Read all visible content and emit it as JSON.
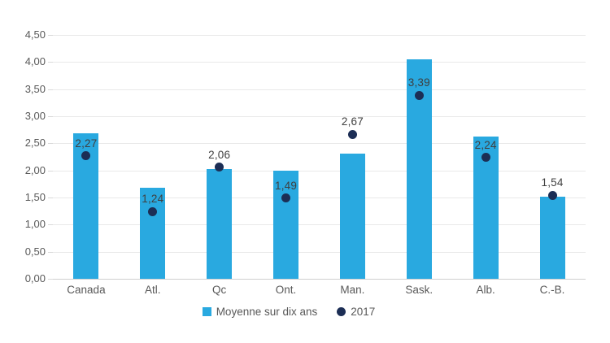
{
  "chart_data": {
    "type": "bar",
    "title": "",
    "categories": [
      "Canada",
      "Atl.",
      "Qc",
      "Ont.",
      "Man.",
      "Sask.",
      "Alb.",
      "C.-B."
    ],
    "series": [
      {
        "name": "Moyenne sur dix ans",
        "type": "bar",
        "values": [
          2.68,
          1.68,
          2.03,
          2.0,
          2.31,
          4.05,
          2.63,
          1.52
        ]
      },
      {
        "name": "2017",
        "type": "scatter",
        "values": [
          2.27,
          1.24,
          2.06,
          1.49,
          2.67,
          3.39,
          2.24,
          1.54
        ],
        "labels": [
          "2,27",
          "1,24",
          "2,06",
          "1,49",
          "2,67",
          "3,39",
          "2,24",
          "1,54"
        ]
      }
    ],
    "ylim": [
      0,
      4.5
    ],
    "ytick_step": 0.5,
    "ytick_labels": [
      "0,00",
      "0,50",
      "1,00",
      "1,50",
      "2,00",
      "2,50",
      "3,00",
      "3,50",
      "4,00",
      "4,50"
    ],
    "grid": true,
    "legend_position": "bottom",
    "colors": {
      "bar": "#29a9e0",
      "dot": "#1c2e55",
      "gridline": "#e9e9e9",
      "axis_line": "#cfcfcf",
      "ytick_label": "#595959",
      "data_label": "#3f3f3f",
      "category_label": "#595959",
      "legend_text": "#595959",
      "background": "#ffffff"
    }
  },
  "legend": {
    "items": [
      {
        "label": "Moyenne sur dix ans",
        "swatch": "square"
      },
      {
        "label": "2017",
        "swatch": "circle"
      }
    ]
  }
}
